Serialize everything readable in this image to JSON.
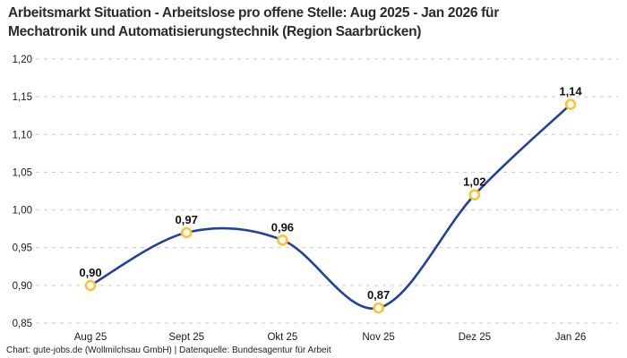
{
  "header": {
    "title_line1": "Arbeitsmarkt Situation - Arbeitslose pro offene Stelle: Aug 2025 - Jan 2026 für",
    "title_line2": "Mechatronik und Automatisierungstechnik (Region Saarbrücken)"
  },
  "footer": {
    "text": "Chart: gute-jobs.de (Wollmilchsau GmbH) | Datenquelle: Bundesagentur für Arbeit"
  },
  "chart_data": {
    "type": "line",
    "title": "Arbeitsmarkt Situation - Arbeitslose pro offene Stelle: Aug 2025 - Jan 2026 für Mechatronik und Automatisierungstechnik (Region Saarbrücken)",
    "categories": [
      "Aug 25",
      "Sept 25",
      "Okt 25",
      "Nov 25",
      "Dez 25",
      "Jan 26"
    ],
    "values": [
      0.9,
      0.97,
      0.96,
      0.87,
      1.02,
      1.14
    ],
    "value_labels": [
      "0,90",
      "0,97",
      "0,96",
      "0,87",
      "1,02",
      "1,14"
    ],
    "ylim": [
      0.85,
      1.2
    ],
    "yticks": [
      0.85,
      0.9,
      0.95,
      1.0,
      1.05,
      1.1,
      1.15,
      1.2
    ],
    "ytick_labels": [
      "0,85",
      "0,90",
      "0,95",
      "1,00",
      "1,05",
      "1,10",
      "1,15",
      "1,20"
    ],
    "xlabel": "",
    "ylabel": "",
    "legend": "none",
    "grid": "horizontal-dashed",
    "curve": "smooth",
    "colors": {
      "line": "#22409e",
      "marker_stroke": "#fdc330",
      "marker_fill": "#ffffff",
      "grid": "#c9c9c9",
      "text": "#1a1a1a"
    }
  }
}
